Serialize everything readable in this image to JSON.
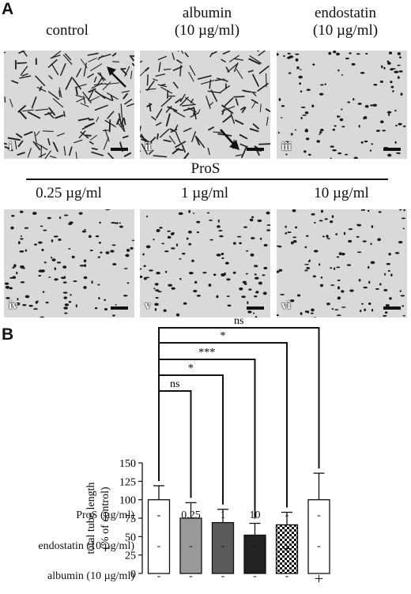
{
  "panel_a": {
    "letter": "A",
    "top_labels": [
      "control",
      "albumin\n(10 µg/ml)",
      "endostatin\n(10 µg/ml)"
    ],
    "pros_label": "ProS",
    "conc_labels": [
      "0.25 µg/ml",
      "1 µg/ml",
      "10 µg/ml"
    ],
    "image_tags": [
      "i",
      "ii",
      "iii",
      "iv",
      "v",
      "vi"
    ]
  },
  "panel_b": {
    "letter": "B"
  },
  "chart_data": {
    "type": "bar",
    "ylabel": "total tube length\n(% of control)",
    "ylim": [
      0,
      150
    ],
    "yticks": [
      0,
      25,
      50,
      75,
      100,
      125,
      150
    ],
    "categories": [
      "control",
      "ProS 0.25",
      "ProS 1",
      "ProS 10",
      "endostatin",
      "albumin"
    ],
    "values": [
      100,
      75,
      69,
      52,
      66,
      100
    ],
    "errors": [
      19,
      21,
      18,
      16,
      17,
      36
    ],
    "bar_fills": [
      "#ffffff",
      "#9a9a9a",
      "#5a5a5a",
      "#222222",
      "checker",
      "#ffffff"
    ],
    "significance": [
      {
        "from": 0,
        "to": 1,
        "label": "ns"
      },
      {
        "from": 0,
        "to": 2,
        "label": "*"
      },
      {
        "from": 0,
        "to": 3,
        "label": "***"
      },
      {
        "from": 0,
        "to": 4,
        "label": "*"
      },
      {
        "from": 0,
        "to": 5,
        "label": "ns"
      }
    ],
    "table": [
      {
        "label": "ProS (µg/ml)",
        "cells": [
          "-",
          "0.25",
          "1",
          "10",
          "-",
          "-"
        ]
      },
      {
        "label": "endostatin (10 µg/ml)",
        "cells": [
          "-",
          "-",
          "-",
          "-",
          "+",
          "-"
        ]
      },
      {
        "label": "albumin (10 µg/ml)",
        "cells": [
          "-",
          "-",
          "-",
          "-",
          "-",
          "+"
        ]
      }
    ]
  }
}
